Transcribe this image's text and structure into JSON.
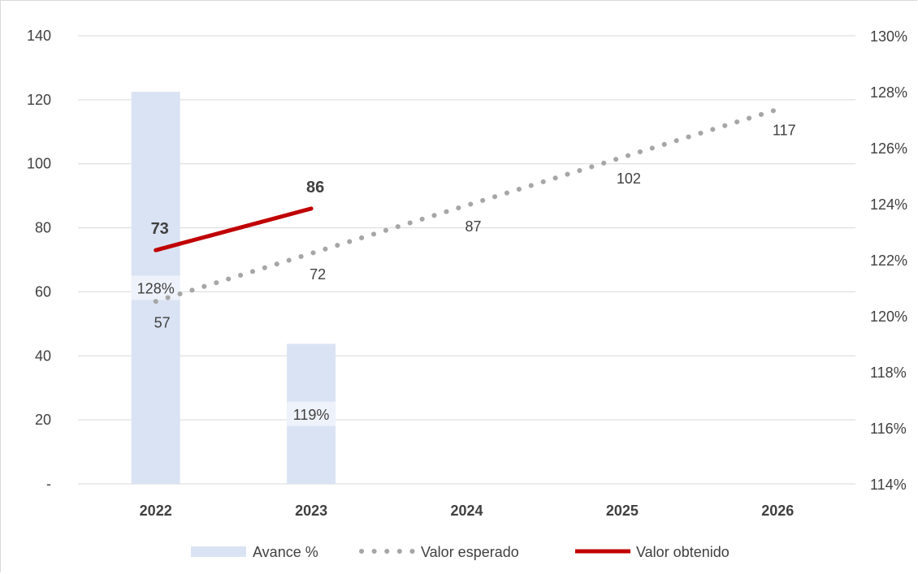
{
  "chart_data": {
    "type": "bar",
    "categories": [
      "2022",
      "2023",
      "2024",
      "2025",
      "2026"
    ],
    "left_axis": {
      "min": 0,
      "max": 140,
      "step": 20,
      "tick_labels": [
        "-",
        "20",
        "40",
        "60",
        "80",
        "100",
        "120",
        "140"
      ]
    },
    "right_axis": {
      "min": 1.14,
      "max": 1.3,
      "step": 0.02,
      "tick_labels": [
        "114%",
        "116%",
        "118%",
        "120%",
        "122%",
        "124%",
        "126%",
        "128%",
        "130%"
      ]
    },
    "series": [
      {
        "name": "Avance %",
        "kind": "bar",
        "axis": "right",
        "color": "#dae3f3",
        "values": [
          1.28,
          1.19,
          null,
          null,
          null
        ],
        "labels": [
          "128%",
          "119%",
          "",
          "",
          ""
        ]
      },
      {
        "name": "Valor esperado",
        "kind": "line-dotted",
        "axis": "left",
        "color": "#a6a6a6",
        "values": [
          57,
          72,
          87,
          102,
          117
        ],
        "labels": [
          "57",
          "72",
          "87",
          "102",
          "117"
        ]
      },
      {
        "name": "Valor obtenido",
        "kind": "line",
        "axis": "left",
        "color": "#c00000",
        "values": [
          73,
          86,
          null,
          null,
          null
        ],
        "labels": [
          "73",
          "86",
          "",
          "",
          ""
        ]
      }
    ],
    "grid": true,
    "legend_position": "bottom"
  }
}
